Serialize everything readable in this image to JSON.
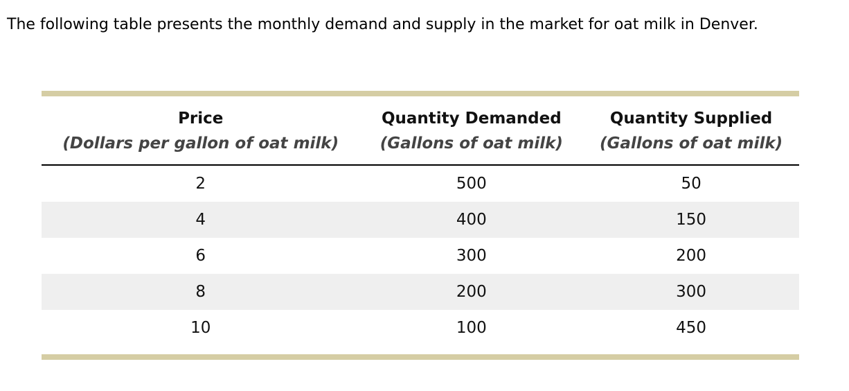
{
  "intro": {
    "text": "The following table presents the monthly demand and supply in the market for oat milk in Denver."
  },
  "table": {
    "columns": [
      {
        "label": "Price",
        "sublabel": "(Dollars per gallon of oat milk)"
      },
      {
        "label": "Quantity Demanded",
        "sublabel": "(Gallons of oat milk)"
      },
      {
        "label": "Quantity Supplied",
        "sublabel": "(Gallons of oat milk)"
      }
    ],
    "rows": [
      [
        "2",
        "500",
        "50"
      ],
      [
        "4",
        "400",
        "150"
      ],
      [
        "6",
        "300",
        "200"
      ],
      [
        "8",
        "200",
        "300"
      ],
      [
        "10",
        "100",
        "450"
      ]
    ]
  },
  "chart_data": {
    "type": "table",
    "title": "Monthly demand and supply in the market for oat milk in Denver",
    "x_label": "Price (Dollars per gallon of oat milk)",
    "categories": [
      2,
      4,
      6,
      8,
      10
    ],
    "series": [
      {
        "name": "Quantity Demanded (Gallons of oat milk)",
        "values": [
          500,
          400,
          300,
          200,
          100
        ]
      },
      {
        "name": "Quantity Supplied (Gallons of oat milk)",
        "values": [
          50,
          150,
          200,
          300,
          450
        ]
      }
    ]
  },
  "colors": {
    "accent_bar": "#d5cda4",
    "alt_row": "#efefef",
    "header_text": "#111111",
    "subheader_text": "#444444",
    "background": "#ffffff"
  }
}
